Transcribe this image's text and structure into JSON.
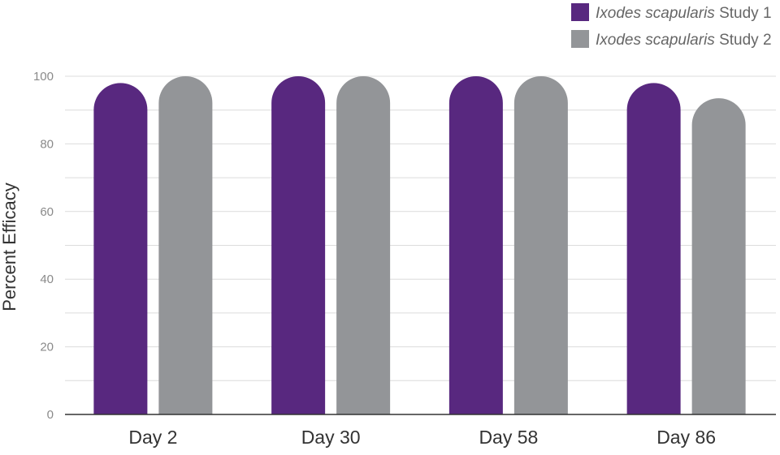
{
  "chart_data": {
    "type": "bar",
    "title": "",
    "xlabel": "",
    "ylabel": "Percent Efficacy",
    "ylim": [
      0,
      100
    ],
    "yticks": [
      0,
      20,
      40,
      60,
      80,
      100
    ],
    "minor_grid_step": 10,
    "grid": true,
    "legend_position": "top-right",
    "categories": [
      "Day 2",
      "Day 30",
      "Day 58",
      "Day 86"
    ],
    "series": [
      {
        "name_italic": "Ixodes scapularis",
        "name_suffix": " Study 1",
        "color": "#58287f",
        "values": [
          98,
          100,
          100,
          98
        ]
      },
      {
        "name_italic": "Ixodes scapularis",
        "name_suffix": " Study 2",
        "color": "#939598",
        "values": [
          100,
          100,
          100,
          93.5
        ]
      }
    ]
  }
}
